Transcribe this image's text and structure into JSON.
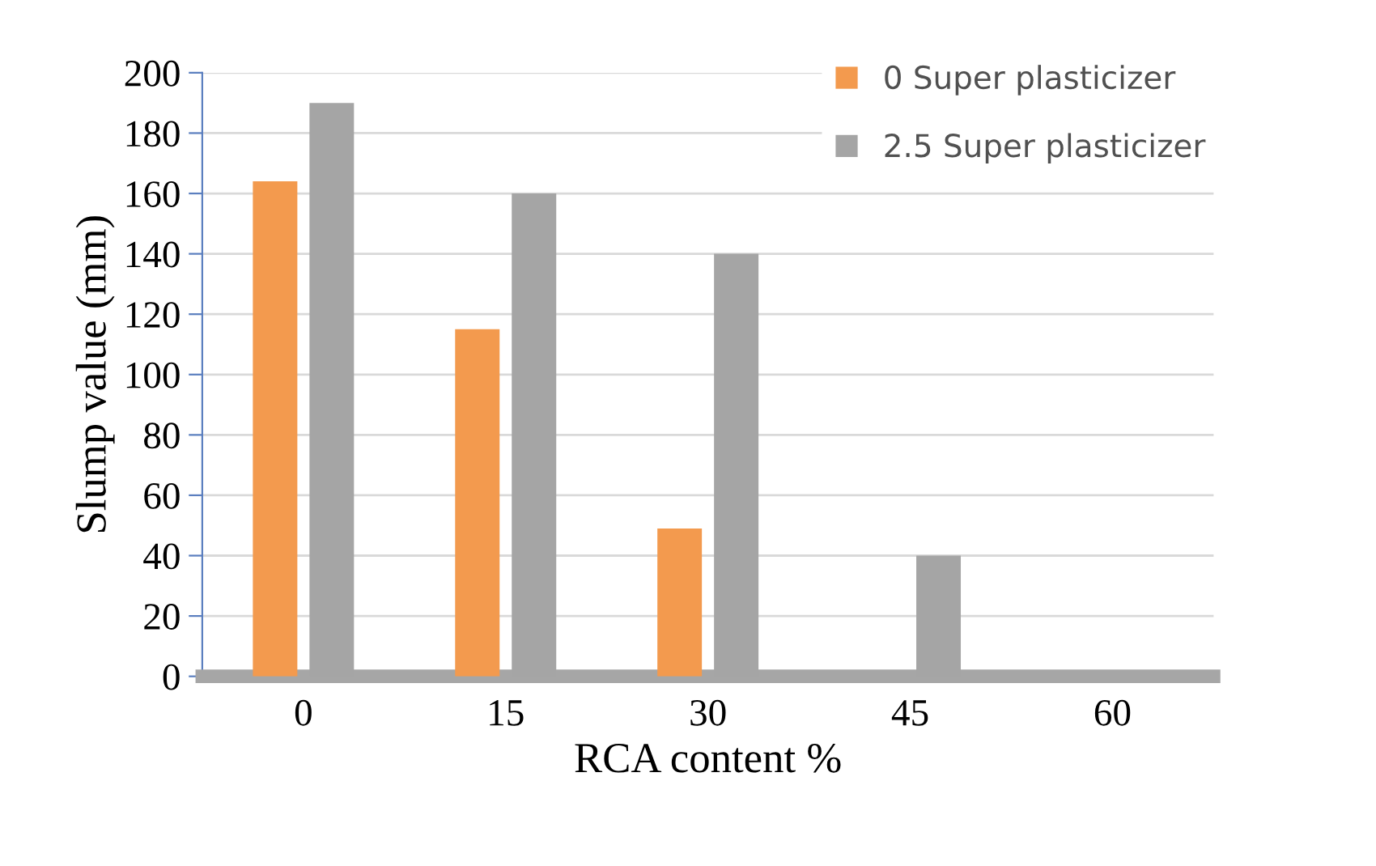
{
  "chart_data": {
    "type": "bar",
    "xlabel": "RCA content %",
    "ylabel": "Slump value (mm)",
    "categories": [
      "0",
      "15",
      "30",
      "45",
      "60"
    ],
    "series": [
      {
        "name": "0 Super plasticizer",
        "color": "#f39a4e",
        "values": [
          164,
          115,
          49,
          0,
          0
        ]
      },
      {
        "name": "2.5 Super plasticizer",
        "color": "#a5a5a5",
        "values": [
          190,
          160,
          140,
          40,
          0
        ]
      }
    ],
    "ylim": [
      0,
      200
    ],
    "yticks": [
      0,
      20,
      40,
      60,
      80,
      100,
      120,
      140,
      160,
      180,
      200
    ],
    "grid": "y",
    "legend": "top right"
  }
}
